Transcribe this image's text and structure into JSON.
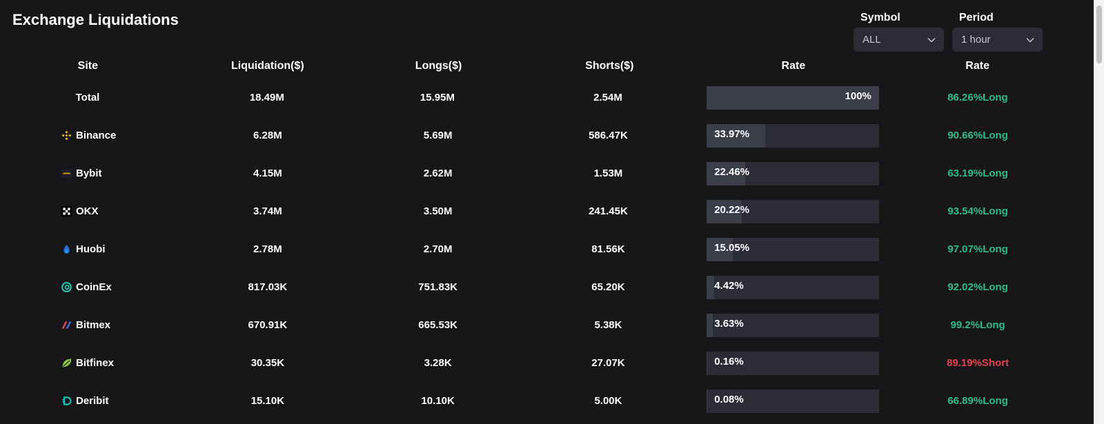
{
  "title": "Exchange Liquidations",
  "filters": {
    "symbol": {
      "label": "Symbol",
      "value": "ALL"
    },
    "period": {
      "label": "Period",
      "value": "1 hour"
    }
  },
  "table": {
    "headers": {
      "site": "Site",
      "liquidation": "Liquidation($)",
      "longs": "Longs($)",
      "shorts": "Shorts($)",
      "rate_bar": "Rate",
      "rate": "Rate"
    },
    "rows": [
      {
        "site": "Total",
        "icon": "none",
        "liquidation": "18.49M",
        "longs": "15.95M",
        "shorts": "2.54M",
        "share": "100%",
        "share_value": 100,
        "rate": "86.26%Long",
        "rate_dir": "long"
      },
      {
        "site": "Binance",
        "icon": "binance-icon",
        "liquidation": "6.28M",
        "longs": "5.69M",
        "shorts": "586.47K",
        "share": "33.97%",
        "share_value": 33.97,
        "rate": "90.66%Long",
        "rate_dir": "long"
      },
      {
        "site": "Bybit",
        "icon": "bybit-icon",
        "liquidation": "4.15M",
        "longs": "2.62M",
        "shorts": "1.53M",
        "share": "22.46%",
        "share_value": 22.46,
        "rate": "63.19%Long",
        "rate_dir": "long"
      },
      {
        "site": "OKX",
        "icon": "okx-icon",
        "liquidation": "3.74M",
        "longs": "3.50M",
        "shorts": "241.45K",
        "share": "20.22%",
        "share_value": 20.22,
        "rate": "93.54%Long",
        "rate_dir": "long"
      },
      {
        "site": "Huobi",
        "icon": "huobi-icon",
        "liquidation": "2.78M",
        "longs": "2.70M",
        "shorts": "81.56K",
        "share": "15.05%",
        "share_value": 15.05,
        "rate": "97.07%Long",
        "rate_dir": "long"
      },
      {
        "site": "CoinEx",
        "icon": "coinex-icon",
        "liquidation": "817.03K",
        "longs": "751.83K",
        "shorts": "65.20K",
        "share": "4.42%",
        "share_value": 4.42,
        "rate": "92.02%Long",
        "rate_dir": "long"
      },
      {
        "site": "Bitmex",
        "icon": "bitmex-icon",
        "liquidation": "670.91K",
        "longs": "665.53K",
        "shorts": "5.38K",
        "share": "3.63%",
        "share_value": 3.63,
        "rate": "99.2%Long",
        "rate_dir": "long"
      },
      {
        "site": "Bitfinex",
        "icon": "bitfinex-icon",
        "liquidation": "30.35K",
        "longs": "3.28K",
        "shorts": "27.07K",
        "share": "0.16%",
        "share_value": 0.16,
        "rate": "89.19%Short",
        "rate_dir": "short"
      },
      {
        "site": "Deribit",
        "icon": "deribit-icon",
        "liquidation": "15.10K",
        "longs": "10.10K",
        "shorts": "5.00K",
        "share": "0.08%",
        "share_value": 0.08,
        "rate": "66.89%Long",
        "rate_dir": "long"
      }
    ]
  },
  "colors": {
    "background": "#17171a",
    "long": "#2ebd85",
    "short": "#e2424e",
    "bar_track": "#2b2c35",
    "bar_fill": "#3b3d49"
  }
}
